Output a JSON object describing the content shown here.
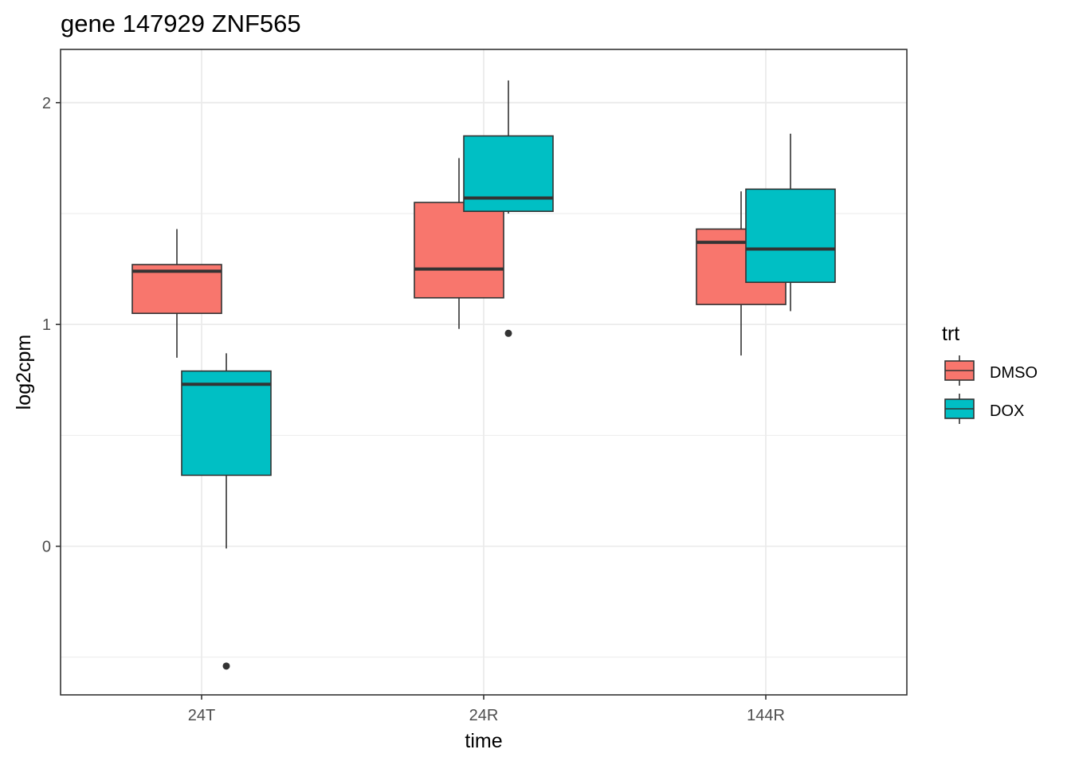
{
  "chart_data": {
    "type": "boxplot",
    "title": "gene 147929 ZNF565",
    "xlabel": "time",
    "ylabel": "log2cpm",
    "categories": [
      "24T",
      "24R",
      "144R"
    ],
    "ylim": [
      -0.67,
      2.24
    ],
    "yticks": [
      0,
      1,
      2
    ],
    "grid": true,
    "legend": {
      "title": "trt",
      "position": "right",
      "entries": [
        "DMSO",
        "DOX"
      ]
    },
    "series": [
      {
        "name": "DMSO",
        "color": "#F8766D",
        "boxes": [
          {
            "category": "24T",
            "whisker_low": 0.85,
            "q1": 1.05,
            "median": 1.24,
            "q3": 1.27,
            "whisker_high": 1.43,
            "outliers": []
          },
          {
            "category": "24R",
            "whisker_low": 0.98,
            "q1": 1.12,
            "median": 1.25,
            "q3": 1.55,
            "whisker_high": 1.75,
            "outliers": []
          },
          {
            "category": "144R",
            "whisker_low": 0.86,
            "q1": 1.09,
            "median": 1.37,
            "q3": 1.43,
            "whisker_high": 1.6,
            "outliers": []
          }
        ]
      },
      {
        "name": "DOX",
        "color": "#00BFC4",
        "boxes": [
          {
            "category": "24T",
            "whisker_low": -0.01,
            "q1": 0.32,
            "median": 0.73,
            "q3": 0.79,
            "whisker_high": 0.87,
            "outliers": [
              -0.54
            ]
          },
          {
            "category": "24R",
            "whisker_low": 1.5,
            "q1": 1.51,
            "median": 1.57,
            "q3": 1.85,
            "whisker_high": 2.1,
            "outliers": [
              0.96
            ]
          },
          {
            "category": "144R",
            "whisker_low": 1.06,
            "q1": 1.19,
            "median": 1.34,
            "q3": 1.61,
            "whisker_high": 1.86,
            "outliers": []
          }
        ]
      }
    ]
  }
}
